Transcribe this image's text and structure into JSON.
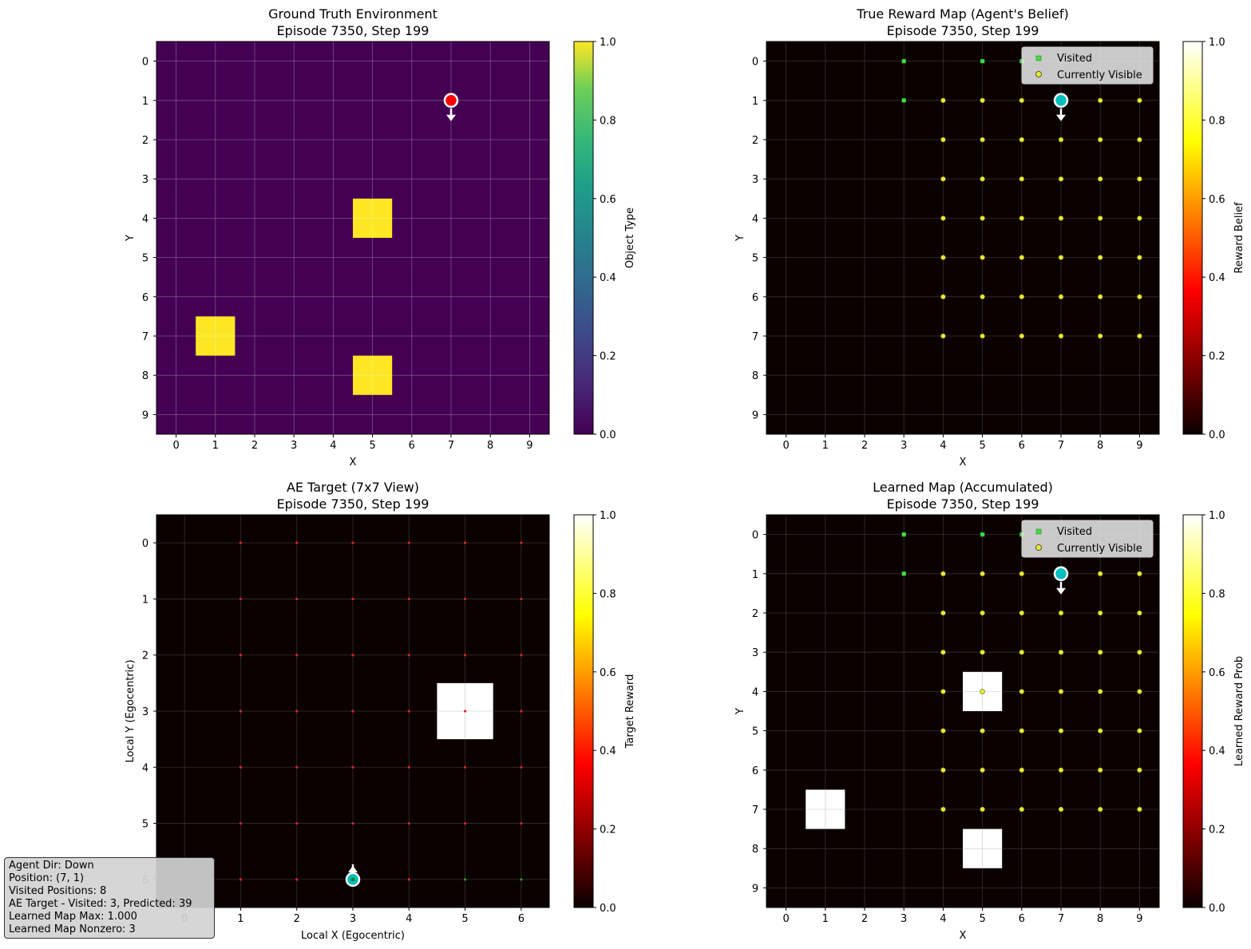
{
  "chart_data": [
    {
      "panel": "ground-truth",
      "type": "heatmap",
      "title": "Ground Truth Environment",
      "subtitle": "Episode 7350, Step 199",
      "xlabel": "X",
      "ylabel": "Y",
      "xticks": [
        "0",
        "1",
        "2",
        "3",
        "4",
        "5",
        "6",
        "7",
        "8",
        "9"
      ],
      "yticks": [
        "0",
        "1",
        "2",
        "3",
        "4",
        "5",
        "6",
        "7",
        "8",
        "9"
      ],
      "grid_size": 10,
      "colormap": "viridis",
      "colorbar_label": "Object Type",
      "colorbar_ticks": [
        "0.0",
        "0.2",
        "0.4",
        "0.6",
        "0.8",
        "1.0"
      ],
      "cells": [
        {
          "x": 5,
          "y": 4,
          "value": 1.0
        },
        {
          "x": 1,
          "y": 7,
          "value": 1.0
        },
        {
          "x": 5,
          "y": 8,
          "value": 1.0
        }
      ],
      "agent": {
        "x": 7,
        "y": 1,
        "color": "#ff0000",
        "dir": "down"
      }
    },
    {
      "panel": "true-reward",
      "type": "heatmap",
      "title": "True Reward Map (Agent's Belief)",
      "subtitle": "Episode 7350, Step 199",
      "xlabel": "X",
      "ylabel": "Y",
      "xticks": [
        "0",
        "1",
        "2",
        "3",
        "4",
        "5",
        "6",
        "7",
        "8",
        "9"
      ],
      "yticks": [
        "0",
        "1",
        "2",
        "3",
        "4",
        "5",
        "6",
        "7",
        "8",
        "9"
      ],
      "grid_size": 10,
      "colormap": "hot",
      "colorbar_label": "Reward Belief",
      "colorbar_ticks": [
        "0.0",
        "0.2",
        "0.4",
        "0.6",
        "0.8",
        "1.0"
      ],
      "cells": [],
      "visited": [
        [
          3,
          0
        ],
        [
          5,
          0
        ],
        [
          6,
          0
        ],
        [
          3,
          1
        ]
      ],
      "visible_rows": [
        1,
        2,
        3,
        4,
        5,
        6,
        7
      ],
      "visible_cols": [
        4,
        5,
        6,
        7,
        8,
        9
      ],
      "legend": [
        "Visited",
        "Currently Visible"
      ],
      "legend_position": "top-right",
      "agent": {
        "x": 7,
        "y": 1,
        "color": "#00bfbf",
        "dir": "down"
      }
    },
    {
      "panel": "ae-target",
      "type": "heatmap",
      "title": "AE Target (7x7 View)",
      "subtitle": "Episode 7350, Step 199",
      "xlabel": "Local X (Egocentric)",
      "ylabel": "Local Y (Egocentric)",
      "xticks": [
        "0",
        "1",
        "2",
        "3",
        "4",
        "5",
        "6"
      ],
      "yticks": [
        "0",
        "1",
        "2",
        "3",
        "4",
        "5",
        "6"
      ],
      "grid_size": 7,
      "colormap": "hot",
      "colorbar_label": "Target Reward",
      "colorbar_ticks": [
        "0.0",
        "0.2",
        "0.4",
        "0.6",
        "0.8",
        "1.0"
      ],
      "cells": [
        {
          "x": 5,
          "y": 3,
          "value": 1.0
        }
      ],
      "predicted_cols": [
        1,
        2,
        3,
        4,
        5,
        6
      ],
      "predicted_rows": [
        0,
        1,
        2,
        3,
        4,
        5,
        6
      ],
      "visited": [
        [
          5,
          6
        ],
        [
          6,
          6
        ]
      ],
      "agent": {
        "x": 3,
        "y": 6,
        "color": "#00bfbf",
        "dir": "up"
      }
    },
    {
      "panel": "learned-map",
      "type": "heatmap",
      "title": "Learned Map (Accumulated)",
      "subtitle": "Episode 7350, Step 199",
      "xlabel": "X",
      "ylabel": "Y",
      "xticks": [
        "0",
        "1",
        "2",
        "3",
        "4",
        "5",
        "6",
        "7",
        "8",
        "9"
      ],
      "yticks": [
        "0",
        "1",
        "2",
        "3",
        "4",
        "5",
        "6",
        "7",
        "8",
        "9"
      ],
      "grid_size": 10,
      "colormap": "hot",
      "colorbar_label": "Learned Reward Prob",
      "colorbar_ticks": [
        "0.0",
        "0.2",
        "0.4",
        "0.6",
        "0.8",
        "1.0"
      ],
      "cells": [
        {
          "x": 5,
          "y": 4,
          "value": 1.0
        },
        {
          "x": 1,
          "y": 7,
          "value": 1.0
        },
        {
          "x": 5,
          "y": 8,
          "value": 1.0
        }
      ],
      "visited": [
        [
          3,
          0
        ],
        [
          5,
          0
        ],
        [
          6,
          0
        ],
        [
          3,
          1
        ]
      ],
      "visible_rows": [
        1,
        2,
        3,
        4,
        5,
        6,
        7
      ],
      "visible_cols": [
        4,
        5,
        6,
        7,
        8,
        9
      ],
      "legend": [
        "Visited",
        "Currently Visible"
      ],
      "legend_position": "top-right",
      "agent": {
        "x": 7,
        "y": 1,
        "color": "#00bfbf",
        "dir": "down"
      }
    }
  ],
  "info": {
    "lines": [
      "Agent Dir: Down",
      "Position: (7, 1)",
      "Visited Positions: 8",
      "AE Target - Visited: 3, Predicted: 39",
      "Learned Map Max: 1.000",
      "Learned Map Nonzero: 3"
    ]
  },
  "colors": {
    "viridis_low": "#440154",
    "viridis_high": "#fde725",
    "hot_low": "#0b0000",
    "visited_marker": "#44dd44",
    "visible_marker": "#e8e83a",
    "predicted_marker": "#dd2222"
  }
}
